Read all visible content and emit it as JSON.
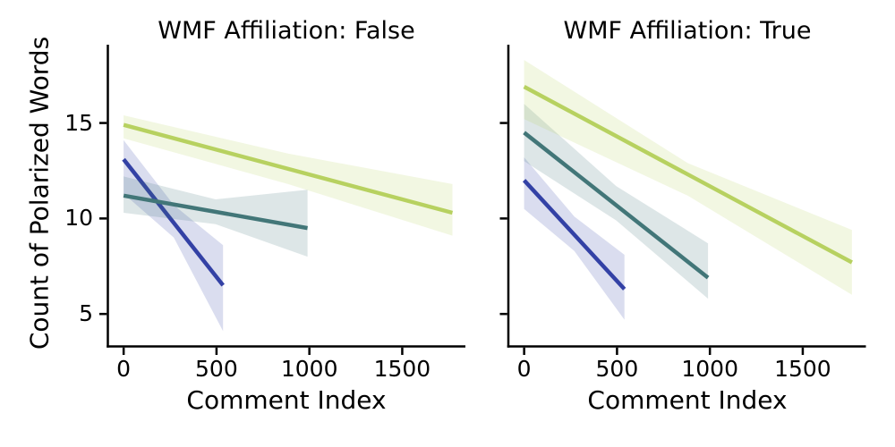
{
  "figure": {
    "background": "#ffffff",
    "ylabel": "Count of Polarized Words"
  },
  "style": {
    "axis_color": "#000000",
    "text_color": "#000000",
    "band_opacity": 0.18,
    "line_width": 4.5
  },
  "chart_data": [
    {
      "type": "line",
      "title": "WMF Affiliation: False",
      "xlabel": "Comment Index",
      "ylabel": "Count of Polarized Words",
      "xlim": [
        -85,
        1840
      ],
      "ylim": [
        3.3,
        19.1
      ],
      "xticks": [
        0,
        500,
        1000,
        1500
      ],
      "yticks": [
        5,
        10,
        15
      ],
      "ytick_labels_visible": true,
      "grid": false,
      "legend": "none",
      "series": [
        {
          "name": "blue",
          "color": "#3341a5",
          "x": [
            0,
            535
          ],
          "y": [
            13.1,
            6.5
          ],
          "ci": [
            [
              0,
              14.1,
              11.3
            ],
            [
              270,
              10.7,
              9.0
            ],
            [
              535,
              8.6,
              4.1
            ]
          ]
        },
        {
          "name": "teal",
          "color": "#427678",
          "x": [
            0,
            990
          ],
          "y": [
            11.2,
            9.5
          ],
          "ci": [
            [
              0,
              12.2,
              10.3
            ],
            [
              495,
              11.0,
              9.7
            ],
            [
              990,
              11.5,
              8.0
            ]
          ]
        },
        {
          "name": "yellow-green",
          "color": "#b7d160",
          "x": [
            0,
            1770
          ],
          "y": [
            14.9,
            10.3
          ],
          "ci": [
            [
              0,
              15.4,
              14.2
            ],
            [
              885,
              13.4,
              11.8
            ],
            [
              1770,
              11.8,
              9.1
            ]
          ]
        }
      ]
    },
    {
      "type": "line",
      "title": "WMF Affiliation: True",
      "xlabel": "Comment Index",
      "xlim": [
        -85,
        1840
      ],
      "ylim": [
        3.3,
        19.1
      ],
      "xticks": [
        0,
        500,
        1000,
        1500
      ],
      "yticks": [
        5,
        10,
        15
      ],
      "ytick_labels_visible": false,
      "grid": false,
      "legend": "none",
      "series": [
        {
          "name": "blue",
          "color": "#3341a5",
          "x": [
            0,
            540
          ],
          "y": [
            12.0,
            6.3
          ],
          "ci": [
            [
              0,
              13.2,
              10.5
            ],
            [
              270,
              10.1,
              8.3
            ],
            [
              540,
              8.1,
              4.7
            ]
          ]
        },
        {
          "name": "teal",
          "color": "#427678",
          "x": [
            0,
            990
          ],
          "y": [
            14.5,
            6.9
          ],
          "ci": [
            [
              0,
              16.0,
              13.0
            ],
            [
              495,
              11.7,
              9.9
            ],
            [
              990,
              8.7,
              5.8
            ]
          ]
        },
        {
          "name": "yellow-green",
          "color": "#b7d160",
          "x": [
            0,
            1765
          ],
          "y": [
            16.9,
            7.7
          ],
          "ci": [
            [
              0,
              18.3,
              15.2
            ],
            [
              880,
              12.9,
              11.2
            ],
            [
              1765,
              9.4,
              6.0
            ]
          ]
        }
      ]
    }
  ]
}
